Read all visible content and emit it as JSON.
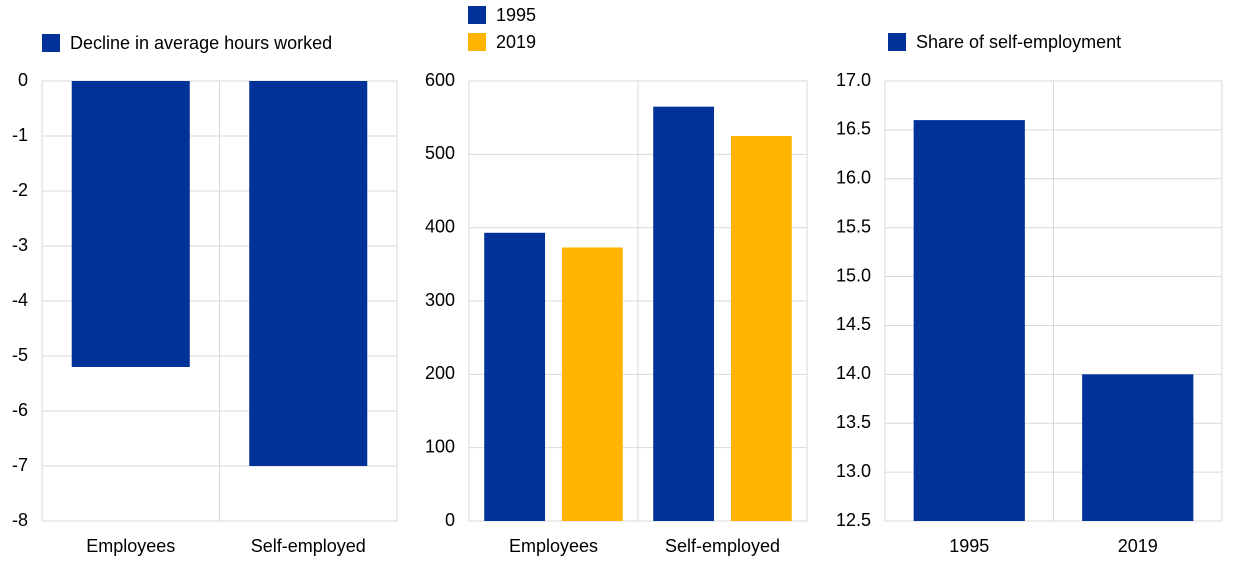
{
  "chart_data": [
    {
      "type": "bar",
      "categories": [
        "Employees",
        "Self-employed"
      ],
      "series": [
        {
          "name": "Decline in average hours worked",
          "color": "#003299",
          "values": [
            -5.2,
            -7.0
          ]
        }
      ],
      "ylim": [
        -8,
        0
      ],
      "yticks": [
        0,
        -1,
        -2,
        -3,
        -4,
        -5,
        -6,
        -7,
        -8
      ],
      "grid": true
    },
    {
      "type": "bar",
      "categories": [
        "Employees",
        "Self-employed"
      ],
      "series": [
        {
          "name": "1995",
          "color": "#003299",
          "values": [
            393,
            565
          ]
        },
        {
          "name": "2019",
          "color": "#ffb400",
          "values": [
            373,
            525
          ]
        }
      ],
      "ylim": [
        0,
        600
      ],
      "yticks": [
        0,
        100,
        200,
        300,
        400,
        500,
        600
      ],
      "grid": true
    },
    {
      "type": "bar",
      "categories": [
        "1995",
        "2019"
      ],
      "series": [
        {
          "name": "Share of self-employment",
          "color": "#003299",
          "values": [
            16.6,
            14.0
          ]
        }
      ],
      "ylim": [
        12.5,
        17
      ],
      "yticks": [
        12.5,
        {
          "value": 13,
          "label": "13.0"
        },
        13.5,
        {
          "value": 14,
          "label": "14.0"
        },
        14.5,
        {
          "value": 15,
          "label": "15.0"
        },
        15.5,
        {
          "value": 16,
          "label": "16.0"
        },
        16.5,
        {
          "value": 17,
          "label": "17.0"
        }
      ],
      "grid": true
    }
  ]
}
